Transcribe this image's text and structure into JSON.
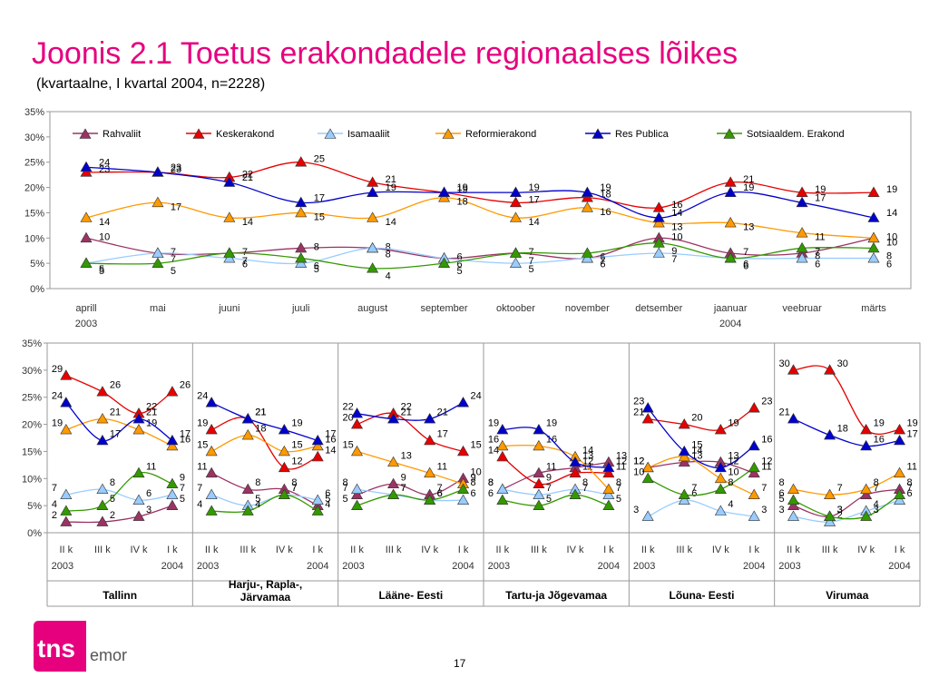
{
  "title": "Joonis 2.1 Toetus erakondadele regionaalses lõikes",
  "subtitle": "(kvartaalne, I kvartal 2004, n=2228)",
  "page_number": "17",
  "logo": {
    "text_main": "tns",
    "text_sub": "emor",
    "brand_color": "#e6007e"
  },
  "colors": {
    "Rahvaliit": "#9b3363",
    "Keskerakond": "#e60000",
    "Isamaaliit": "#99ccff",
    "Reformierakond": "#ff9900",
    "Res Publica": "#0000cc",
    "Sotsiaaldem. Erakond": "#339900"
  },
  "chart_data": [
    {
      "type": "line",
      "yticks": [
        "0%",
        "5%",
        "10%",
        "15%",
        "20%",
        "25%",
        "30%",
        "35%"
      ],
      "ylim": [
        0,
        35
      ],
      "grid": false,
      "legend_position": "top",
      "categories": [
        "aprill",
        "mai",
        "juuni",
        "juuli",
        "august",
        "september",
        "oktoober",
        "november",
        "detsember",
        "jaanuar",
        "veebruar",
        "märts"
      ],
      "year_labels": [
        {
          "index": 0,
          "text": "2003"
        },
        {
          "index": 9,
          "text": "2004"
        }
      ],
      "series": [
        {
          "name": "Rahvaliit",
          "values": [
            10,
            7,
            7,
            8,
            8,
            6,
            7,
            6,
            10,
            7,
            7,
            10
          ]
        },
        {
          "name": "Keskerakond",
          "values": [
            23,
            23,
            22,
            25,
            21,
            19,
            17,
            18,
            16,
            21,
            19,
            19
          ]
        },
        {
          "name": "Isamaaliit",
          "values": [
            5,
            7,
            6,
            5,
            8,
            6,
            5,
            6,
            7,
            6,
            6,
            6
          ]
        },
        {
          "name": "Reformierakond",
          "values": [
            14,
            17,
            14,
            15,
            14,
            18,
            14,
            16,
            13,
            13,
            11,
            10
          ]
        },
        {
          "name": "Res Publica",
          "values": [
            24,
            23,
            21,
            17,
            19,
            19,
            19,
            19,
            14,
            19,
            17,
            14
          ]
        },
        {
          "name": "Sotsiaaldem. Erakond",
          "values": [
            5,
            5,
            7,
            6,
            4,
            5,
            7,
            7,
            9,
            6,
            8,
            8
          ]
        }
      ]
    },
    {
      "type": "line",
      "yticks": [
        "0%",
        "5%",
        "10%",
        "15%",
        "20%",
        "25%",
        "30%",
        "35%"
      ],
      "ylim": [
        0,
        35
      ],
      "grid": false,
      "quarter_labels": [
        "II k",
        "III k",
        "IV k",
        "I k"
      ],
      "year_left": "2003",
      "year_right": "2004",
      "panels": [
        {
          "region": "Tallinn",
          "series": [
            {
              "name": "Rahvaliit",
              "values": [
                2,
                2,
                3,
                5
              ]
            },
            {
              "name": "Keskerakond",
              "values": [
                29,
                26,
                22,
                26
              ]
            },
            {
              "name": "Isamaaliit",
              "values": [
                7,
                8,
                6,
                7
              ]
            },
            {
              "name": "Reformierakond",
              "values": [
                19,
                21,
                19,
                16
              ]
            },
            {
              "name": "Res Publica",
              "values": [
                24,
                17,
                21,
                17
              ]
            },
            {
              "name": "Sotsiaaldem. Erakond",
              "values": [
                4,
                5,
                11,
                9
              ]
            }
          ]
        },
        {
          "region": "Harju-, Rapla-, Järvamaa",
          "series": [
            {
              "name": "Rahvaliit",
              "values": [
                11,
                8,
                8,
                5
              ]
            },
            {
              "name": "Keskerakond",
              "values": [
                19,
                21,
                12,
                14
              ]
            },
            {
              "name": "Isamaaliit",
              "values": [
                7,
                5,
                7,
                6
              ]
            },
            {
              "name": "Reformierakond",
              "values": [
                15,
                18,
                15,
                16
              ]
            },
            {
              "name": "Res Publica",
              "values": [
                24,
                21,
                19,
                17
              ]
            },
            {
              "name": "Sotsiaaldem. Erakond",
              "values": [
                4,
                4,
                7,
                4
              ]
            }
          ]
        },
        {
          "region": "Lääne- Eesti",
          "series": [
            {
              "name": "Rahvaliit",
              "values": [
                7,
                9,
                7,
                10
              ]
            },
            {
              "name": "Keskerakond",
              "values": [
                20,
                22,
                17,
                15
              ]
            },
            {
              "name": "Isamaaliit",
              "values": [
                8,
                7,
                6,
                6
              ]
            },
            {
              "name": "Reformierakond",
              "values": [
                15,
                13,
                11,
                9
              ]
            },
            {
              "name": "Res Publica",
              "values": [
                22,
                21,
                21,
                24
              ]
            },
            {
              "name": "Sotsiaaldem. Erakond",
              "values": [
                5,
                7,
                6,
                8
              ]
            }
          ]
        },
        {
          "region": "Tartu-ja Jõgevamaa",
          "series": [
            {
              "name": "Rahvaliit",
              "values": [
                8,
                11,
                12,
                13
              ]
            },
            {
              "name": "Keskerakond",
              "values": [
                14,
                9,
                11,
                11
              ]
            },
            {
              "name": "Isamaaliit",
              "values": [
                8,
                7,
                8,
                7
              ]
            },
            {
              "name": "Reformierakond",
              "values": [
                16,
                16,
                14,
                8
              ]
            },
            {
              "name": "Res Publica",
              "values": [
                19,
                19,
                13,
                12
              ]
            },
            {
              "name": "Sotsiaaldem. Erakond",
              "values": [
                6,
                5,
                7,
                5
              ]
            }
          ]
        },
        {
          "region": "Lõuna- Eesti",
          "series": [
            {
              "name": "Rahvaliit",
              "values": [
                12,
                13,
                13,
                11
              ]
            },
            {
              "name": "Keskerakond",
              "values": [
                21,
                20,
                19,
                23
              ]
            },
            {
              "name": "Isamaaliit",
              "values": [
                3,
                6,
                4,
                3
              ]
            },
            {
              "name": "Reformierakond",
              "values": [
                12,
                14,
                10,
                7
              ]
            },
            {
              "name": "Res Publica",
              "values": [
                23,
                15,
                12,
                16
              ]
            },
            {
              "name": "Sotsiaaldem. Erakond",
              "values": [
                10,
                7,
                8,
                12
              ]
            }
          ]
        },
        {
          "region": "Virumaa",
          "series": [
            {
              "name": "Rahvaliit",
              "values": [
                5,
                3,
                7,
                8
              ]
            },
            {
              "name": "Keskerakond",
              "values": [
                30,
                30,
                19,
                19
              ]
            },
            {
              "name": "Isamaaliit",
              "values": [
                3,
                2,
                4,
                6
              ]
            },
            {
              "name": "Reformierakond",
              "values": [
                8,
                7,
                8,
                11
              ]
            },
            {
              "name": "Res Publica",
              "values": [
                21,
                18,
                16,
                17
              ]
            },
            {
              "name": "Sotsiaaldem. Erakond",
              "values": [
                6,
                3,
                3,
                7
              ]
            }
          ]
        }
      ]
    }
  ]
}
